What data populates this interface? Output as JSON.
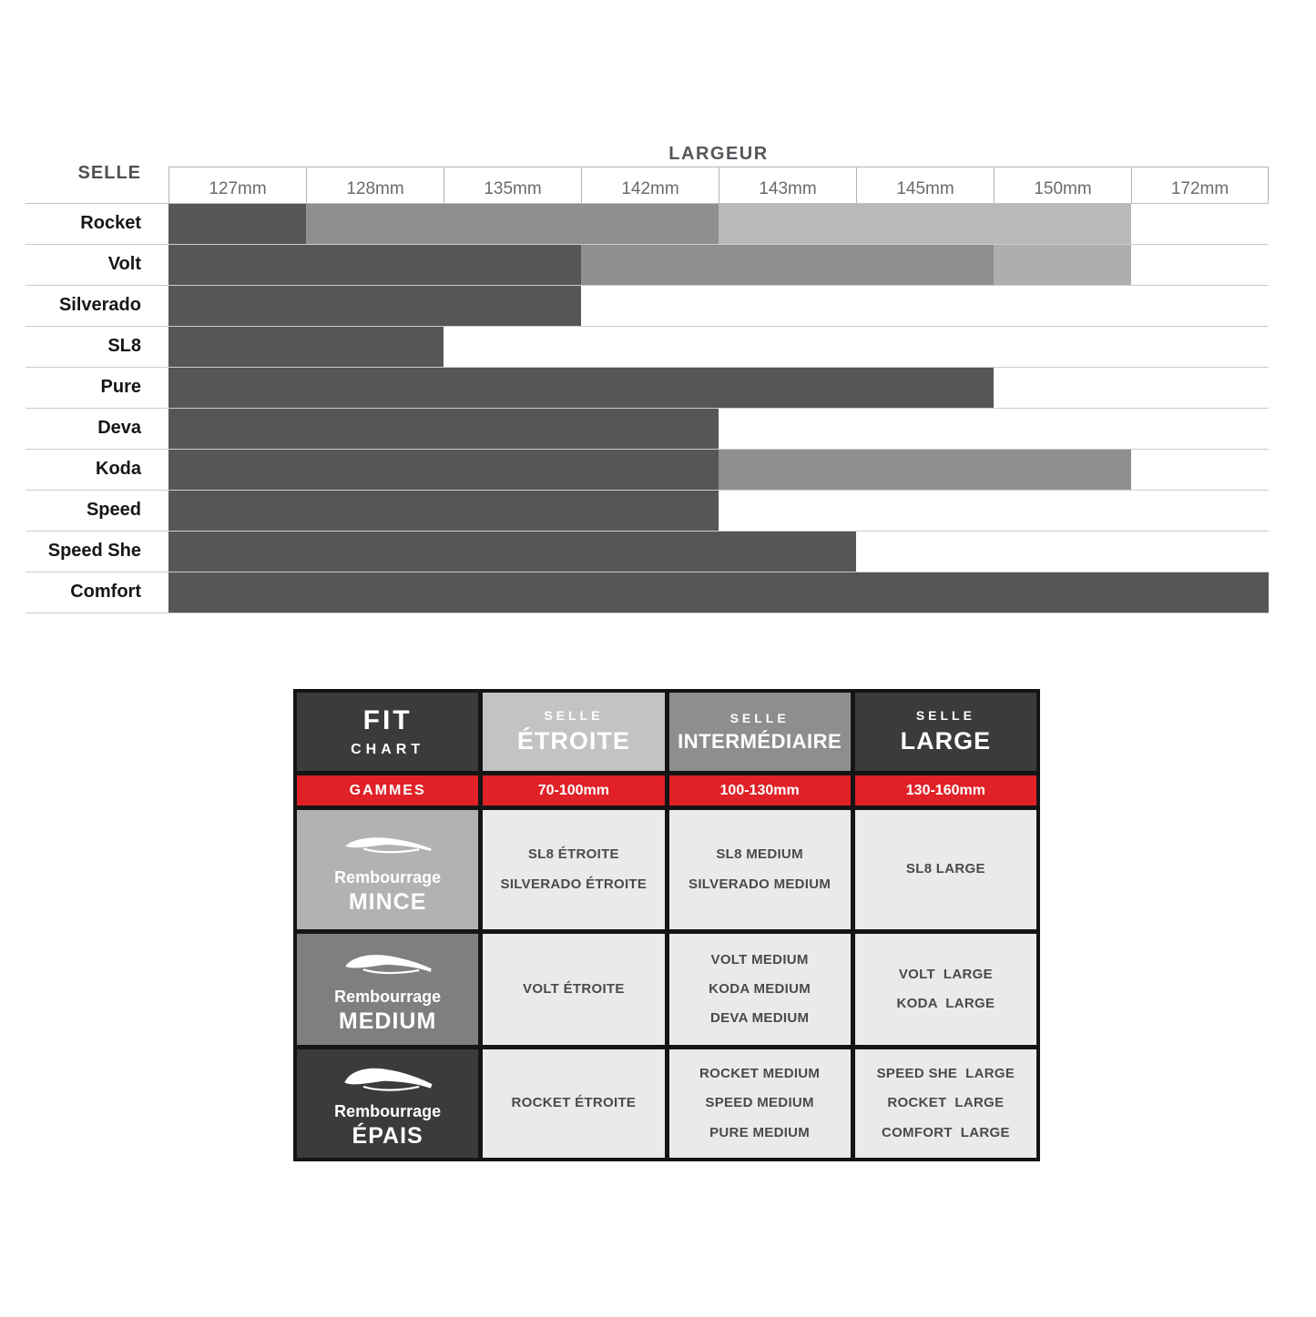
{
  "colors": {
    "bar_dark": "#565658",
    "bar_medium": "#8f8f8d",
    "bar_light": "#b9b9b7",
    "bar_light2": "#aeaeac",
    "accent_red": "#e02127",
    "panel_dark": "#3b3b3b",
    "panel_medium": "#7f7f7f",
    "panel_light": "#b2b2b2",
    "header_light_gray": "#c3c3c3",
    "header_medium_gray": "#8e8e8e",
    "cell_bg": "#eaeae8",
    "grid_line": "#cccccc"
  },
  "chart_data": [
    {
      "type": "bar",
      "title": "LARGEUR",
      "ylabel": "SELLE",
      "categories": [
        "127mm",
        "128mm",
        "135mm",
        "142mm",
        "143mm",
        "145mm",
        "150mm",
        "172mm"
      ],
      "legend": "none",
      "grid": "horizontal-row-separators",
      "shades": {
        "dark": "#565658",
        "medium": "#8f8f8d",
        "light": "#b9b9b7",
        "light2": "#aeaeac"
      },
      "rows": [
        {
          "label": "Rocket",
          "segments": [
            {
              "cols": [
                0,
                0
              ],
              "shade": "dark"
            },
            {
              "cols": [
                1,
                3
              ],
              "shade": "medium"
            },
            {
              "cols": [
                4,
                6
              ],
              "shade": "light"
            }
          ]
        },
        {
          "label": "Volt",
          "segments": [
            {
              "cols": [
                0,
                2
              ],
              "shade": "dark"
            },
            {
              "cols": [
                3,
                5
              ],
              "shade": "medium"
            },
            {
              "cols": [
                6,
                6
              ],
              "shade": "light2"
            }
          ]
        },
        {
          "label": "Silverado",
          "segments": [
            {
              "cols": [
                0,
                2
              ],
              "shade": "dark"
            }
          ]
        },
        {
          "label": "SL8",
          "segments": [
            {
              "cols": [
                0,
                1
              ],
              "shade": "dark"
            }
          ]
        },
        {
          "label": "Pure",
          "segments": [
            {
              "cols": [
                0,
                5
              ],
              "shade": "dark"
            }
          ]
        },
        {
          "label": "Deva",
          "segments": [
            {
              "cols": [
                0,
                3
              ],
              "shade": "dark"
            }
          ]
        },
        {
          "label": "Koda",
          "segments": [
            {
              "cols": [
                0,
                3
              ],
              "shade": "dark"
            },
            {
              "cols": [
                4,
                6
              ],
              "shade": "medium"
            }
          ]
        },
        {
          "label": "Speed",
          "segments": [
            {
              "cols": [
                0,
                3
              ],
              "shade": "dark"
            }
          ]
        },
        {
          "label": "Speed She",
          "segments": [
            {
              "cols": [
                0,
                4
              ],
              "shade": "dark"
            }
          ]
        },
        {
          "label": "Comfort",
          "segments": [
            {
              "cols": [
                0,
                7
              ],
              "shade": "dark"
            }
          ]
        }
      ]
    },
    {
      "type": "table",
      "header": {
        "fit_line1": "FIT",
        "fit_line2": "CHART",
        "columns": [
          {
            "top": "SELLE",
            "main": "ÉTROITE",
            "bg": "#c3c3c3"
          },
          {
            "top": "SELLE",
            "main": "INTERMÉDIAIRE",
            "bg": "#8e8e8e"
          },
          {
            "top": "SELLE",
            "main": "LARGE",
            "bg": "#3b3b3b"
          }
        ]
      },
      "ranges_row": {
        "label": "GAMMES",
        "values": [
          "70-100mm",
          "100-130mm",
          "130-160mm"
        ],
        "bg": "#e02127"
      },
      "rows": [
        {
          "label_top": "Rembourrage",
          "label_main": "MINCE",
          "bg": "#b2b2b2",
          "icon": "saddle-thin-icon",
          "cells": [
            [
              "SL8 ÉTROITE",
              "SILVERADO ÉTROITE"
            ],
            [
              "SL8 MEDIUM",
              "SILVERADO MEDIUM"
            ],
            [
              "SL8 LARGE"
            ]
          ]
        },
        {
          "label_top": "Rembourrage",
          "label_main": "MEDIUM",
          "bg": "#7f7f7f",
          "icon": "saddle-medium-icon",
          "cells": [
            [
              "VOLT ÉTROITE"
            ],
            [
              "VOLT MEDIUM",
              "KODA MEDIUM",
              "DEVA MEDIUM"
            ],
            [
              "VOLT  LARGE",
              "KODA  LARGE"
            ]
          ]
        },
        {
          "label_top": "Rembourrage",
          "label_main": "ÉPAIS",
          "bg": "#3b3b3b",
          "icon": "saddle-thick-icon",
          "cells": [
            [
              "ROCKET ÉTROITE"
            ],
            [
              "ROCKET MEDIUM",
              "SPEED MEDIUM",
              "PURE MEDIUM"
            ],
            [
              "SPEED SHE  LARGE",
              "ROCKET  LARGE",
              "COMFORT  LARGE"
            ]
          ]
        }
      ]
    }
  ]
}
